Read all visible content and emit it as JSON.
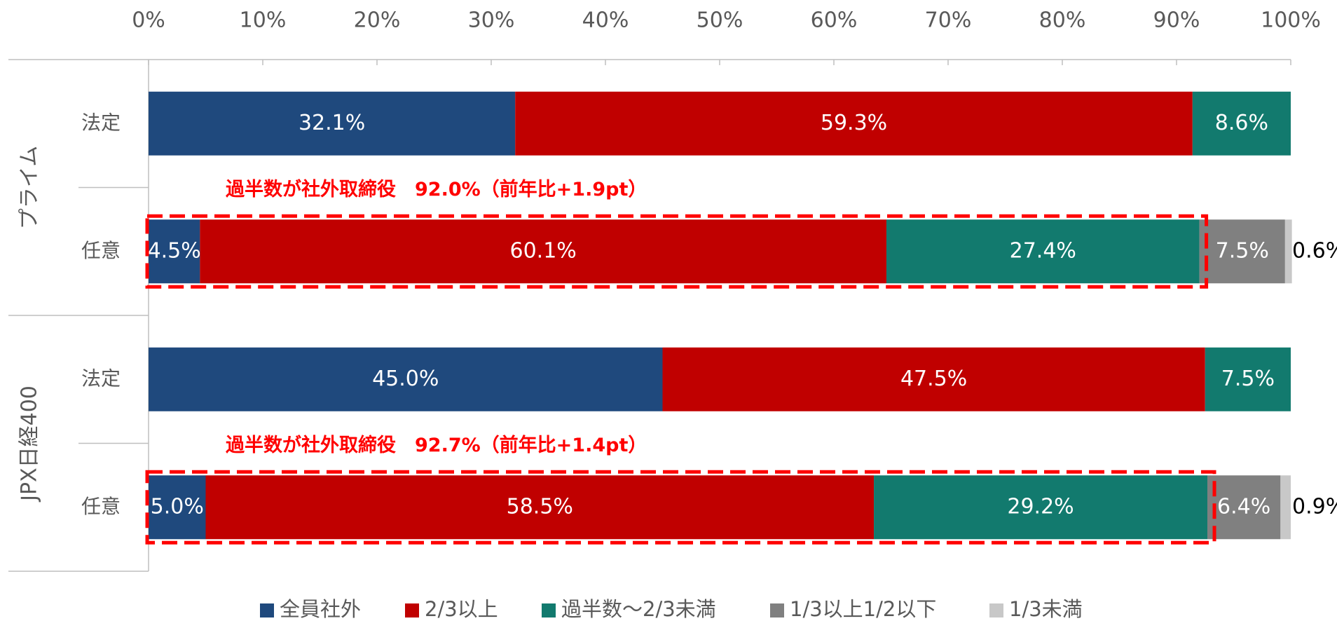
{
  "chart_data": {
    "type": "stacked_barh",
    "groups": [
      "プライム",
      "JPX日経400"
    ],
    "categories": [
      "法定",
      "任意",
      "法定",
      "任意"
    ],
    "series": [
      {
        "name": "全員社外",
        "color": "#1f497d",
        "values": [
          32.1,
          4.5,
          45.0,
          5.0
        ],
        "value_labels": [
          "32.1%",
          "4.5%",
          "45.0%",
          "5.0%"
        ]
      },
      {
        "name": "2/3以上",
        "color": "#c00000",
        "values": [
          59.3,
          60.1,
          47.5,
          58.5
        ],
        "value_labels": [
          "59.3%",
          "60.1%",
          "47.5%",
          "58.5%"
        ]
      },
      {
        "name": "過半数～2/3未満",
        "color": "#127a6e",
        "values": [
          8.6,
          27.4,
          7.5,
          29.2
        ],
        "value_labels": [
          "8.6%",
          "27.4%",
          "7.5%",
          "29.2%"
        ]
      },
      {
        "name": "1/3以上1/2以下",
        "color": "#808080",
        "values": [
          null,
          7.5,
          null,
          6.4
        ],
        "value_labels": [
          null,
          "7.5%",
          null,
          "6.4%"
        ]
      },
      {
        "name": "1/3未満",
        "color": "#c8c8c8",
        "values": [
          null,
          0.6,
          null,
          0.9
        ],
        "value_labels": [
          null,
          "0.6%",
          null,
          "0.9%"
        ]
      }
    ],
    "annotations": [
      "過半数が社外取締役　92.0%（前年比+1.9pt）",
      "過半数が社外取締役　92.7%（前年比+1.4pt）"
    ],
    "xlim": [
      0,
      100
    ],
    "xticks": [
      {
        "value": 0,
        "label": "0%"
      },
      {
        "value": 10,
        "label": "10%"
      },
      {
        "value": 20,
        "label": "20%"
      },
      {
        "value": 30,
        "label": "30%"
      },
      {
        "value": 40,
        "label": "40%"
      },
      {
        "value": 50,
        "label": "50%"
      },
      {
        "value": 60,
        "label": "60%"
      },
      {
        "value": 70,
        "label": "70%"
      },
      {
        "value": 80,
        "label": "80%"
      },
      {
        "value": 90,
        "label": "90%"
      },
      {
        "value": 100,
        "label": "100%"
      }
    ],
    "legend": "bottom"
  }
}
